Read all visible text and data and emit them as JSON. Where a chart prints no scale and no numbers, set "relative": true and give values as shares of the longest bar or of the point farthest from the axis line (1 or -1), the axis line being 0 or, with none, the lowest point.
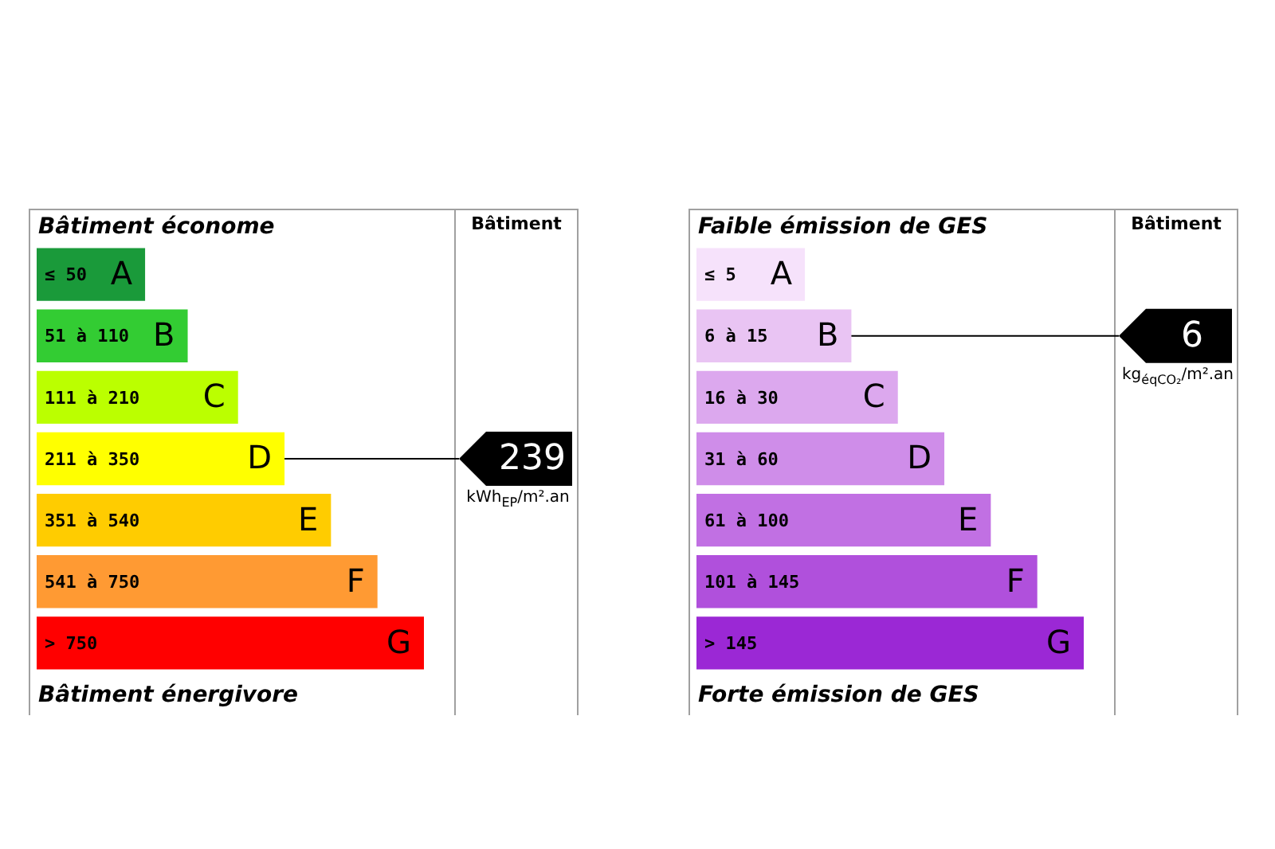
{
  "chart_data": [
    {
      "type": "bar",
      "orientation": "horizontal",
      "relative": true,
      "title": "Bâtiment économe",
      "categories": [
        "≤ 50",
        "51 à 110",
        "111 à 210",
        "211 à 350",
        "351 à 540",
        "541 à 750",
        "> 750"
      ],
      "values": [
        0.28,
        0.39,
        0.52,
        0.64,
        0.76,
        0.88,
        1
      ],
      "colors": [
        "#1a9a3a",
        "#33cc33",
        "#bbff00",
        "#ffff00",
        "#ffcc00",
        "#ff9a33",
        "#ff0000"
      ],
      "annotations": [
        "Bâtiment énergivore",
        "Bâtiment",
        "kWh$_{EP}$/m².an",
        {
          "text": "A",
          "y": "≤ 50"
        },
        {
          "text": "B",
          "y": "51 à 110"
        },
        {
          "text": "C",
          "y": "111 à 210"
        },
        {
          "text": "D",
          "y": "211 à 350"
        },
        {
          "text": "E",
          "y": "351 à 540"
        },
        {
          "text": "F",
          "y": "541 à 750"
        },
        {
          "text": "G",
          "y": "> 750"
        }
      ],
      "ref_lines": [
        {
          "axis": "y",
          "value": "211 à 350",
          "label": "239"
        }
      ]
    },
    {
      "type": "bar",
      "orientation": "horizontal",
      "relative": true,
      "title": "Faible émission de GES",
      "categories": [
        "≤ 5",
        "6 à 15",
        "16 à 30",
        "31 à 60",
        "61 à 100",
        "101 à 145",
        "> 145"
      ],
      "values": [
        0.28,
        0.4,
        0.52,
        0.64,
        0.76,
        0.88,
        1
      ],
      "colors": [
        "#f6e2fb",
        "#e9c4f3",
        "#dca8ee",
        "#cf8de9",
        "#c170e3",
        "#b050dc",
        "#9b28d5"
      ],
      "annotations": [
        "Forte émission de GES",
        "Bâtiment",
        "kg$_{éqCO₂}$/m².an",
        {
          "text": "A",
          "y": "≤ 5"
        },
        {
          "text": "B",
          "y": "6 à 15"
        },
        {
          "text": "C",
          "y": "16 à 30"
        },
        {
          "text": "D",
          "y": "31 à 60"
        },
        {
          "text": "E",
          "y": "61 à 100"
        },
        {
          "text": "F",
          "y": "101 à 145"
        },
        {
          "text": "G",
          "y": "> 145"
        }
      ],
      "ref_lines": [
        {
          "axis": "y",
          "value": "6 à 15",
          "label": "6"
        }
      ]
    }
  ]
}
